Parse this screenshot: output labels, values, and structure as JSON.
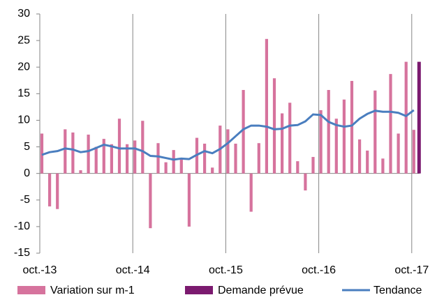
{
  "chart_data": {
    "type": "bar+line",
    "categories": [
      "oct.-13",
      null,
      null,
      null,
      null,
      null,
      null,
      null,
      null,
      null,
      null,
      null,
      "oct.-14",
      null,
      null,
      null,
      null,
      null,
      null,
      null,
      null,
      null,
      null,
      null,
      "oct.-15",
      null,
      null,
      null,
      null,
      null,
      null,
      null,
      null,
      null,
      null,
      null,
      "oct.-16",
      null,
      null,
      null,
      null,
      null,
      null,
      null,
      null,
      null,
      null,
      null,
      "oct.-17"
    ],
    "series": [
      {
        "name": "Variation sur m-1",
        "type": "bar",
        "color": "#d6739d",
        "values": [
          7.5,
          -6.2,
          -6.7,
          8.3,
          7.7,
          0.6,
          7.3,
          5.0,
          6.5,
          5.5,
          10.3,
          5.5,
          6.2,
          9.9,
          -10.3,
          5.7,
          2.1,
          4.4,
          2.7,
          -10.0,
          6.7,
          5.6,
          1.1,
          9.0,
          8.3,
          5.6,
          15.7,
          -7.2,
          5.7,
          25.3,
          17.9,
          11.3,
          13.3,
          2.3,
          -3.2,
          3.1,
          11.9,
          15.7,
          10.3,
          13.9,
          17.4,
          6.4,
          4.3,
          15.6,
          2.8,
          18.7,
          7.5,
          21.0,
          8.2
        ]
      },
      {
        "name": "Demande prévue",
        "type": "bar",
        "color": "#7b1a6f",
        "values": [
          null,
          null,
          null,
          null,
          null,
          null,
          null,
          null,
          null,
          null,
          null,
          null,
          null,
          null,
          null,
          null,
          null,
          null,
          null,
          null,
          null,
          null,
          null,
          null,
          null,
          null,
          null,
          null,
          null,
          null,
          null,
          null,
          null,
          null,
          null,
          null,
          null,
          null,
          null,
          null,
          null,
          null,
          null,
          null,
          null,
          null,
          null,
          null,
          21.0
        ]
      },
      {
        "name": "Tendance",
        "type": "line",
        "color": "#4a7ebf",
        "values": [
          3.5,
          4.0,
          4.2,
          4.7,
          4.5,
          4.0,
          4.2,
          4.8,
          5.4,
          5.1,
          4.7,
          4.7,
          4.7,
          4.2,
          3.3,
          3.2,
          2.9,
          2.6,
          2.8,
          2.7,
          3.5,
          4.2,
          3.8,
          4.6,
          5.7,
          7.0,
          8.3,
          9.0,
          9.0,
          8.8,
          8.3,
          8.4,
          9.0,
          9.1,
          9.8,
          11.1,
          11.0,
          9.7,
          9.1,
          8.8,
          9.0,
          10.3,
          11.2,
          11.8,
          11.6,
          11.6,
          11.4,
          10.8,
          11.9
        ]
      }
    ],
    "ylim": [
      -15,
      30
    ],
    "yticks": [
      -15,
      -10,
      -5,
      0,
      5,
      10,
      15,
      20,
      25,
      30
    ],
    "grid": "x",
    "legend": "bottom"
  }
}
